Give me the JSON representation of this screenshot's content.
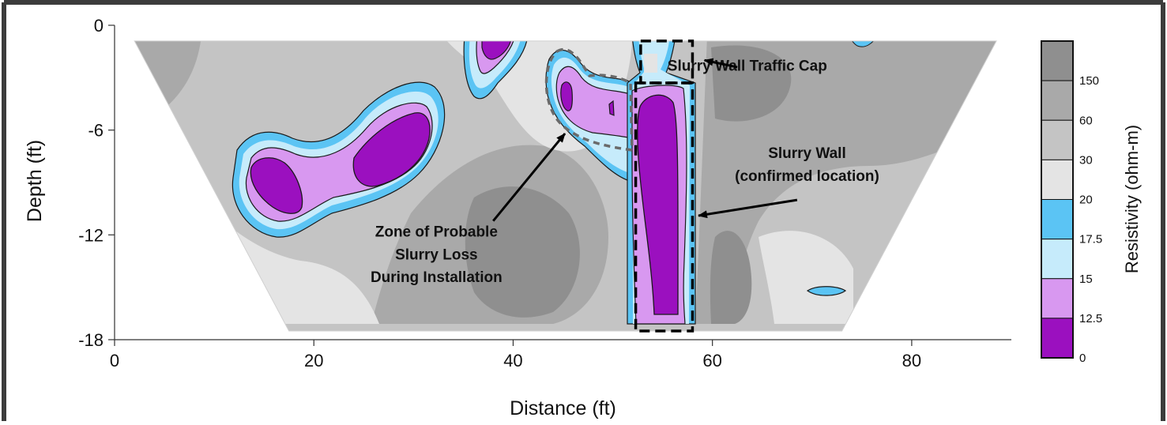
{
  "chart_data": {
    "type": "heatmap",
    "xlabel": "Distance (ft)",
    "ylabel": "Depth (ft)",
    "xlim": [
      0,
      90
    ],
    "ylim": [
      -18,
      0
    ],
    "x_ticks": [
      "0",
      "20",
      "40",
      "60",
      "80"
    ],
    "x_tick_values": [
      0,
      20,
      40,
      60,
      80
    ],
    "y_ticks": [
      "0",
      "-6",
      "-12",
      "-18"
    ],
    "y_tick_values": [
      0,
      -6,
      -12,
      -18
    ],
    "colorbar": {
      "label": "Resistivity (ohm-m)",
      "ticks": [
        "150",
        "60",
        "30",
        "20",
        "17.5",
        "15",
        "12.5",
        "0"
      ],
      "bins": [
        {
          "from": 150,
          "to": null,
          "color": "#8f8f8f"
        },
        {
          "from": 60,
          "to": 150,
          "color": "#a9a9a9"
        },
        {
          "from": 30,
          "to": 60,
          "color": "#c4c4c4"
        },
        {
          "from": 20,
          "to": 30,
          "color": "#e4e4e4"
        },
        {
          "from": 17.5,
          "to": 20,
          "color": "#5bc4f4"
        },
        {
          "from": 15,
          "to": 17.5,
          "color": "#c6ebfb"
        },
        {
          "from": 12.5,
          "to": 15,
          "color": "#d898f0"
        },
        {
          "from": 0,
          "to": 12.5,
          "color": "#9b10bf"
        }
      ]
    },
    "section_outline": {
      "top_depth": -0.9,
      "bottom_depth": -17.5,
      "top_x": [
        2,
        88.5
      ],
      "bottom_x": [
        17.5,
        73
      ]
    },
    "annotations": [
      {
        "text": "Slurry Wall Traffic Cap",
        "x": 63.5,
        "y": -2.6
      },
      {
        "text": "Slurry Wall",
        "x": 69.5,
        "y": -7.6
      },
      {
        "text": "(confirmed location)",
        "x": 69.5,
        "y": -8.9
      },
      {
        "text": "Zone of Probable",
        "x": 32.3,
        "y": -12.1
      },
      {
        "text": "Slurry Loss",
        "x": 32.3,
        "y": -13.4
      },
      {
        "text": "During Installation",
        "x": 32.3,
        "y": -14.7
      }
    ],
    "boxes": [
      {
        "label": "Slurry Wall Traffic Cap",
        "x": [
          52.8,
          58
        ],
        "y": [
          -0.9,
          -3.3
        ]
      },
      {
        "label": "Slurry Wall",
        "x": [
          52.3,
          58
        ],
        "y": [
          -3.3,
          -17.5
        ]
      }
    ],
    "colors": {
      "frame": "#3c3c3c",
      "arrow": "#000000",
      "dashed_zone": "#6a6a6a"
    }
  }
}
